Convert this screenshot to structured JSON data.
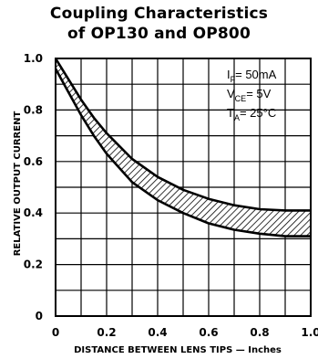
{
  "chart_data": {
    "type": "area",
    "title": [
      "Coupling Characteristics",
      "of OP130 and OP800"
    ],
    "xlabel": "DISTANCE BETWEEN LENS TIPS — Inches",
    "ylabel": "RELATIVE OUTPUT CURRENT",
    "xlim": [
      0,
      1.0
    ],
    "ylim": [
      0,
      1.0
    ],
    "x_ticks": [
      0,
      0.2,
      0.4,
      0.6,
      0.8,
      1.0
    ],
    "x_tick_labels": [
      "0",
      "0.2",
      "0.4",
      "0.6",
      "0.8",
      "1.0"
    ],
    "y_ticks": [
      0,
      0.2,
      0.4,
      0.6,
      0.8,
      1.0
    ],
    "y_tick_labels": [
      "0",
      "0.2",
      "0.4",
      "0.6",
      "0.8",
      "1.0"
    ],
    "grid": true,
    "grid_step": {
      "x": 0.1,
      "y": 0.1
    },
    "band": {
      "fill": "hatched",
      "x": [
        0,
        0.05,
        0.1,
        0.15,
        0.2,
        0.3,
        0.4,
        0.5,
        0.6,
        0.7,
        0.8,
        0.9,
        1.0
      ],
      "upper": [
        1.0,
        0.92,
        0.84,
        0.77,
        0.71,
        0.61,
        0.54,
        0.49,
        0.455,
        0.43,
        0.415,
        0.41,
        0.41
      ],
      "lower": [
        0.96,
        0.87,
        0.78,
        0.7,
        0.63,
        0.52,
        0.45,
        0.4,
        0.36,
        0.335,
        0.32,
        0.31,
        0.31
      ]
    },
    "conditions": [
      {
        "sym": "I",
        "sub": "F",
        "text": "= 50mA"
      },
      {
        "sym": "V",
        "sub": "CE",
        "text": "= 5V"
      },
      {
        "sym": "T",
        "sub": "A",
        "text": "= 25°C"
      }
    ],
    "colors": {
      "line": "#000000",
      "background": "#ffffff"
    }
  }
}
